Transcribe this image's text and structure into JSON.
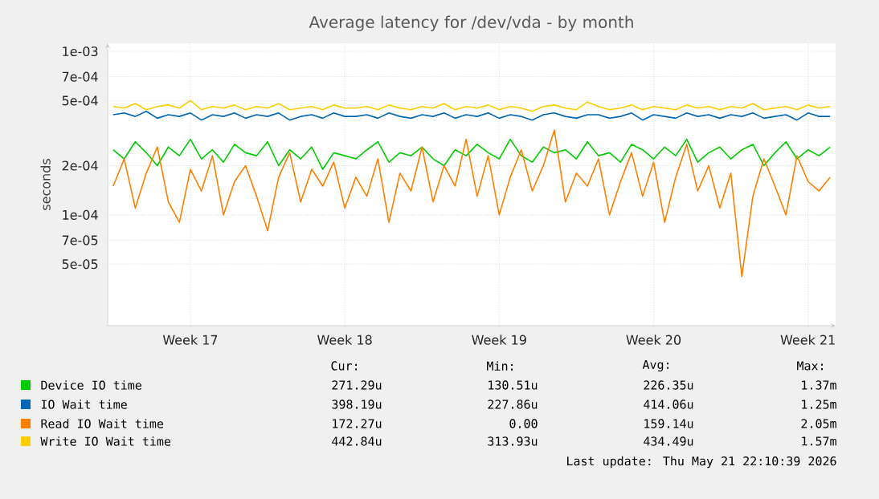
{
  "chart_data": {
    "type": "line",
    "title": "Average latency for /dev/vda - by month",
    "ylabel": "seconds",
    "log": "y",
    "grid": true,
    "legend": "bottom",
    "marker": "none",
    "line_style": "solid",
    "categories": [
      null,
      null,
      null,
      null,
      null,
      null,
      null,
      "Week 17",
      null,
      null,
      null,
      null,
      null,
      null,
      null,
      null,
      null,
      null,
      null,
      null,
      null,
      "Week 18",
      null,
      null,
      null,
      null,
      null,
      null,
      null,
      null,
      null,
      null,
      null,
      null,
      null,
      "Week 19",
      null,
      null,
      null,
      null,
      null,
      null,
      null,
      null,
      null,
      null,
      null,
      null,
      null,
      "Week 20",
      null,
      null,
      null,
      null,
      null,
      null,
      null,
      null,
      null,
      null,
      null,
      null,
      null,
      "Week 21",
      null,
      null
    ],
    "ylim": [
      2.1e-05,
      0.00112
    ],
    "yticks": [
      {
        "value": 5e-05,
        "label": "5e-05"
      },
      {
        "value": 7e-05,
        "label": "7e-05"
      },
      {
        "value": 0.0001,
        "label": "1e-04"
      },
      {
        "value": 0.0002,
        "label": "2e-04"
      },
      {
        "value": 0.0005,
        "label": "5e-04"
      },
      {
        "value": 0.0007,
        "label": "7e-04"
      },
      {
        "value": 0.001,
        "label": "1e-03"
      }
    ],
    "series": [
      {
        "name": "Device IO time",
        "color": "#00cc00",
        "values": [
          0.00025,
          0.00022,
          0.00028,
          0.00024,
          0.0002,
          0.00026,
          0.00023,
          0.00029,
          0.00022,
          0.00025,
          0.00021,
          0.00027,
          0.00024,
          0.00023,
          0.00028,
          0.0002,
          0.00025,
          0.00022,
          0.00026,
          0.00019,
          0.00024,
          0.00023,
          0.00022,
          0.00025,
          0.00028,
          0.00021,
          0.00024,
          0.00023,
          0.00026,
          0.00022,
          0.0002,
          0.00025,
          0.00023,
          0.00027,
          0.00024,
          0.00022,
          0.00029,
          0.00023,
          0.00021,
          0.00026,
          0.00024,
          0.00025,
          0.00022,
          0.00028,
          0.00023,
          0.00024,
          0.00021,
          0.00027,
          0.00025,
          0.00022,
          0.00026,
          0.00023,
          0.00029,
          0.00021,
          0.00024,
          0.00026,
          0.00022,
          0.00025,
          0.00027,
          0.0002,
          0.00024,
          0.00028,
          0.00022,
          0.00025,
          0.00023,
          0.00026
        ]
      },
      {
        "name": "IO Wait time",
        "color": "#0066b3",
        "values": [
          0.00041,
          0.00042,
          0.0004,
          0.00043,
          0.00039,
          0.00041,
          0.0004,
          0.00042,
          0.00038,
          0.00041,
          0.0004,
          0.00042,
          0.00039,
          0.00041,
          0.0004,
          0.00042,
          0.00038,
          0.0004,
          0.00041,
          0.00039,
          0.00042,
          0.0004,
          0.0004,
          0.00041,
          0.00039,
          0.00042,
          0.0004,
          0.00039,
          0.00041,
          0.0004,
          0.00042,
          0.00039,
          0.00041,
          0.0004,
          0.00042,
          0.00039,
          0.00041,
          0.0004,
          0.00038,
          0.00041,
          0.00042,
          0.0004,
          0.00039,
          0.00041,
          0.00041,
          0.00039,
          0.0004,
          0.00042,
          0.00038,
          0.00041,
          0.0004,
          0.00039,
          0.00042,
          0.0004,
          0.00041,
          0.00039,
          0.00041,
          0.0004,
          0.00042,
          0.00039,
          0.0004,
          0.00041,
          0.00038,
          0.00042,
          0.0004,
          0.0004
        ]
      },
      {
        "name": "Read IO Wait time",
        "color": "#ff8000",
        "values": [
          0.00015,
          0.00022,
          0.00011,
          0.00018,
          0.00026,
          0.00012,
          9e-05,
          0.00019,
          0.00014,
          0.00023,
          0.0001,
          0.00016,
          0.0002,
          0.00013,
          8e-05,
          0.00017,
          0.00024,
          0.00012,
          0.00019,
          0.00015,
          0.00021,
          0.00011,
          0.00017,
          0.00013,
          0.00022,
          9e-05,
          0.00018,
          0.00014,
          0.00026,
          0.00012,
          0.0002,
          0.00015,
          0.00029,
          0.00013,
          0.00023,
          0.0001,
          0.00017,
          0.00025,
          0.00014,
          0.0002,
          0.00033,
          0.00012,
          0.00018,
          0.00015,
          0.00022,
          0.0001,
          0.00016,
          0.00024,
          0.00013,
          0.00021,
          9e-05,
          0.00017,
          0.00027,
          0.00014,
          0.0002,
          0.00011,
          0.00018,
          4.2e-05,
          0.00013,
          0.00022,
          0.00015,
          0.0001,
          0.00023,
          0.00016,
          0.00014,
          0.00017
        ]
      },
      {
        "name": "Write IO Wait time",
        "color": "#ffcc00",
        "values": [
          0.00046,
          0.00045,
          0.00048,
          0.00044,
          0.00046,
          0.00047,
          0.00045,
          0.0005,
          0.00044,
          0.00046,
          0.00045,
          0.00047,
          0.00044,
          0.00046,
          0.00045,
          0.00048,
          0.00044,
          0.00045,
          0.00046,
          0.00044,
          0.00047,
          0.00045,
          0.00045,
          0.00046,
          0.00044,
          0.00047,
          0.00045,
          0.00044,
          0.00046,
          0.00045,
          0.00048,
          0.00044,
          0.00046,
          0.00045,
          0.00047,
          0.00044,
          0.00046,
          0.00045,
          0.00043,
          0.00046,
          0.00047,
          0.00045,
          0.00044,
          0.00049,
          0.00046,
          0.00044,
          0.00045,
          0.00047,
          0.00044,
          0.00046,
          0.00045,
          0.00044,
          0.00047,
          0.00045,
          0.00046,
          0.00044,
          0.00046,
          0.00045,
          0.00048,
          0.00044,
          0.00045,
          0.00046,
          0.00044,
          0.00047,
          0.00045,
          0.00046
        ]
      }
    ],
    "annotations": [
      "Cur:",
      "Min:",
      "Avg:",
      "Max:",
      "271.29u",
      "130.51u",
      "226.35u",
      "1.37m",
      "398.19u",
      "227.86u",
      "414.06u",
      "1.25m",
      "172.27u",
      "0.00",
      "159.14u",
      "2.05m",
      "442.84u",
      "313.93u",
      "434.49u",
      "1.57m",
      "Last update: Thu May 21 22:10:39 2026"
    ]
  }
}
